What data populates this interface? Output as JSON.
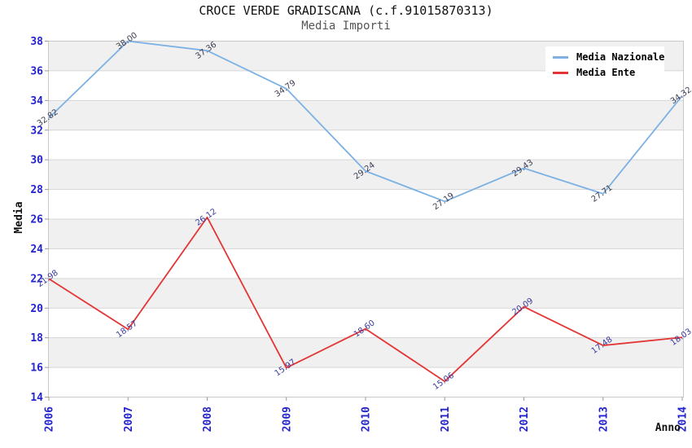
{
  "header": {
    "title": "CROCE VERDE GRADISCANA (c.f.91015870313)",
    "subtitle": "Media Importi"
  },
  "chart_data": {
    "type": "line",
    "title": "CROCE VERDE GRADISCANA (c.f.91015870313)",
    "subtitle": "Media Importi",
    "x": [
      "2006",
      "2007",
      "2008",
      "2009",
      "2010",
      "2011",
      "2012",
      "2013",
      "2014"
    ],
    "series": [
      {
        "name": "Media Nazionale",
        "color": "#7db1e3",
        "label_color": "#3d3d52",
        "values": [
          32.82,
          38.0,
          37.36,
          34.79,
          29.24,
          27.19,
          29.43,
          27.71,
          34.32
        ]
      },
      {
        "name": "Media Ente",
        "color": "#e43535",
        "label_color": "#3a3a9e",
        "values": [
          21.98,
          18.57,
          26.12,
          15.97,
          18.6,
          15.06,
          20.09,
          17.48,
          18.03
        ]
      }
    ],
    "xlabel": "Anno",
    "ylabel": "Media",
    "ylim": [
      14,
      38
    ],
    "yticks": [
      14,
      16,
      18,
      20,
      22,
      24,
      26,
      28,
      30,
      32,
      34,
      36,
      38
    ],
    "grid": true,
    "alternating_bands": true,
    "value_labels": true,
    "legend_position": "top-right"
  },
  "colors": {
    "tick_label": "#2424cd",
    "band": "#f0f0f0",
    "gridline": "#d6d6d6",
    "border": "#c9c9c9",
    "tick_mark": "#999999"
  }
}
